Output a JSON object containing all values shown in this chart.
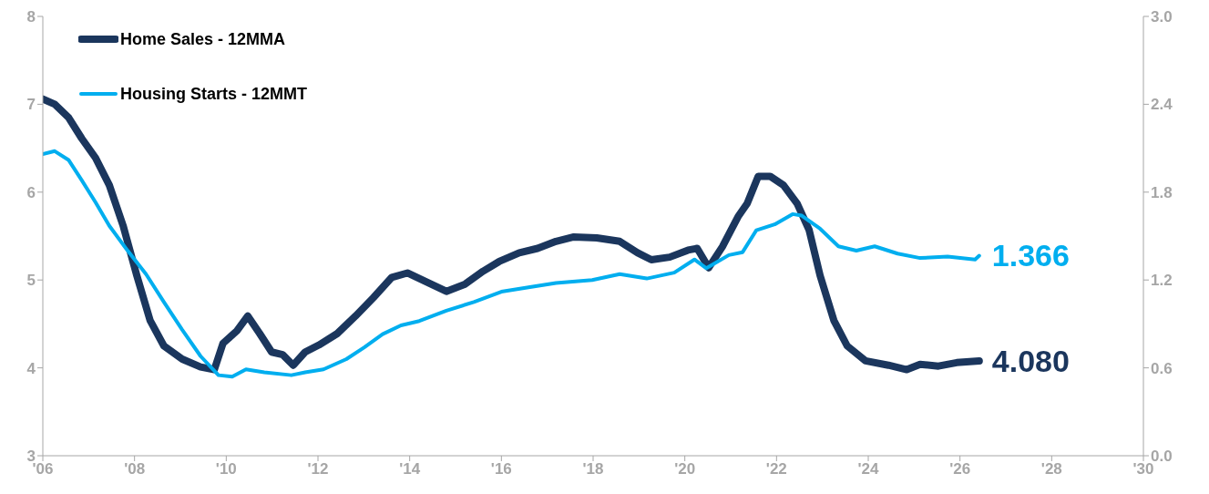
{
  "chart_data": {
    "type": "line",
    "legend": "top left",
    "grid": false,
    "marker": "none",
    "line_style": "solid",
    "xlim": [
      2006,
      2030
    ],
    "xticks": [
      {
        "value": 2006,
        "label": "'06"
      },
      {
        "value": 2008,
        "label": "'08"
      },
      {
        "value": 2010,
        "label": "'10"
      },
      {
        "value": 2012,
        "label": "'12"
      },
      {
        "value": 2014,
        "label": "'14"
      },
      {
        "value": 2016,
        "label": "'16"
      },
      {
        "value": 2018,
        "label": "'18"
      },
      {
        "value": 2020,
        "label": "'20"
      },
      {
        "value": 2022,
        "label": "'22"
      },
      {
        "value": 2024,
        "label": "'24"
      },
      {
        "value": 2026,
        "label": "'26"
      },
      {
        "value": 2028,
        "label": "'28"
      },
      {
        "value": 2030,
        "label": "'30"
      }
    ],
    "ylim": [
      3,
      8
    ],
    "yticks": [
      3,
      4,
      5,
      6,
      7,
      8
    ],
    "y2lim": [
      0,
      3
    ],
    "y2ticks": [
      {
        "value": 0,
        "label": "0.0"
      },
      {
        "value": 0.6,
        "label": "0.6"
      },
      {
        "value": 1.2,
        "label": "1.2"
      },
      {
        "value": 1.8,
        "label": "1.8"
      },
      {
        "value": 2.4,
        "label": "2.4"
      },
      {
        "value": 3,
        "label": "3.0"
      }
    ],
    "series": [
      {
        "name": "Home Sales - 12MMA",
        "color": "#1b365d",
        "x": [
          2006.0,
          2006.26,
          2006.56,
          2006.85,
          2007.15,
          2007.45,
          2007.75,
          2008.05,
          2008.34,
          2008.64,
          2009.04,
          2009.44,
          2009.74,
          2009.93,
          2010.23,
          2010.47,
          2010.73,
          2010.99,
          2011.23,
          2011.46,
          2011.72,
          2012.02,
          2012.42,
          2012.82,
          2013.21,
          2013.61,
          2013.95,
          2014.4,
          2014.8,
          2015.2,
          2015.6,
          2015.95,
          2016.39,
          2016.79,
          2017.19,
          2017.58,
          2018.08,
          2018.58,
          2018.97,
          2019.27,
          2019.67,
          2020.07,
          2020.27,
          2020.52,
          2020.82,
          2021.16,
          2021.36,
          2021.6,
          2021.86,
          2022.15,
          2022.45,
          2022.71,
          2022.95,
          2023.25,
          2023.54,
          2023.94,
          2024.44,
          2024.84,
          2025.13,
          2025.53,
          2025.93,
          2026.42
        ],
        "values": [
          7.06,
          7.0,
          6.85,
          6.61,
          6.39,
          6.08,
          5.62,
          5.05,
          4.54,
          4.25,
          4.1,
          4.01,
          3.98,
          4.28,
          4.42,
          4.59,
          4.39,
          4.18,
          4.15,
          4.03,
          4.18,
          4.26,
          4.39,
          4.59,
          4.8,
          5.03,
          5.08,
          4.97,
          4.87,
          4.95,
          5.1,
          5.21,
          5.31,
          5.36,
          5.44,
          5.49,
          5.48,
          5.44,
          5.31,
          5.23,
          5.26,
          5.34,
          5.36,
          5.14,
          5.38,
          5.72,
          5.87,
          6.18,
          6.18,
          6.08,
          5.87,
          5.57,
          5.05,
          4.54,
          4.25,
          4.08,
          4.03,
          3.98,
          4.04,
          4.02,
          4.06,
          4.08
        ],
        "value_labels": [
          null,
          null,
          null,
          null,
          null,
          null,
          null,
          null,
          null,
          null,
          null,
          null,
          null,
          null,
          null,
          null,
          null,
          null,
          null,
          null,
          null,
          null,
          null,
          null,
          null,
          null,
          null,
          null,
          null,
          null,
          null,
          null,
          null,
          null,
          null,
          null,
          null,
          null,
          null,
          null,
          null,
          null,
          null,
          null,
          null,
          null,
          null,
          null,
          null,
          null,
          null,
          null,
          null,
          null,
          null,
          null,
          null,
          null,
          null,
          null,
          null,
          "4.080"
        ]
      },
      {
        "name": "Housing Starts - 12MMT",
        "color": "#00aeef",
        "axis": "y2",
        "x": [
          2006.0,
          2006.26,
          2006.56,
          2006.85,
          2007.15,
          2007.45,
          2007.85,
          2008.25,
          2008.64,
          2009.04,
          2009.44,
          2009.83,
          2010.13,
          2010.43,
          2010.83,
          2011.42,
          2011.72,
          2012.12,
          2012.62,
          2013.01,
          2013.41,
          2013.81,
          2014.21,
          2014.8,
          2015.4,
          2016.0,
          2016.59,
          2017.19,
          2017.98,
          2018.58,
          2019.17,
          2019.77,
          2020.21,
          2020.47,
          2020.96,
          2021.26,
          2021.56,
          2021.96,
          2022.35,
          2022.55,
          2022.95,
          2023.35,
          2023.74,
          2024.14,
          2024.64,
          2025.13,
          2025.73,
          2026.33,
          2026.42
        ],
        "values": [
          2.06,
          2.08,
          2.02,
          1.88,
          1.73,
          1.57,
          1.4,
          1.24,
          1.05,
          0.86,
          0.68,
          0.55,
          0.54,
          0.59,
          0.57,
          0.55,
          0.57,
          0.59,
          0.66,
          0.74,
          0.83,
          0.89,
          0.92,
          0.99,
          1.05,
          1.12,
          1.15,
          1.18,
          1.2,
          1.24,
          1.21,
          1.25,
          1.34,
          1.28,
          1.37,
          1.39,
          1.54,
          1.58,
          1.65,
          1.64,
          1.55,
          1.43,
          1.4,
          1.43,
          1.38,
          1.35,
          1.36,
          1.34,
          1.366
        ],
        "value_labels": [
          null,
          null,
          null,
          null,
          null,
          null,
          null,
          null,
          null,
          null,
          null,
          null,
          null,
          null,
          null,
          null,
          null,
          null,
          null,
          null,
          null,
          null,
          null,
          null,
          null,
          null,
          null,
          null,
          null,
          null,
          null,
          null,
          null,
          null,
          null,
          null,
          null,
          null,
          null,
          null,
          null,
          null,
          null,
          null,
          null,
          null,
          null,
          null,
          "1.366"
        ]
      }
    ]
  }
}
